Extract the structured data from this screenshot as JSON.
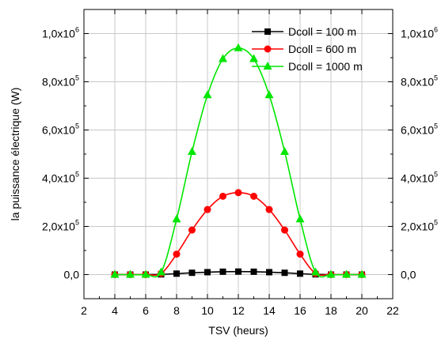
{
  "chart_data": {
    "type": "line",
    "xlabel": "TSV (heurs)",
    "ylabel": "la puissance électrique (W)",
    "xlim": [
      2,
      22
    ],
    "ylim": [
      -100000,
      1100000
    ],
    "x_ticks": [
      2,
      4,
      6,
      8,
      10,
      12,
      14,
      16,
      18,
      20,
      22
    ],
    "x_tick_labels": [
      "2",
      "4",
      "6",
      "8",
      "10",
      "12",
      "14",
      "16",
      "18",
      "20",
      "22"
    ],
    "y_ticks": [
      0,
      200000,
      400000,
      600000,
      800000,
      1000000
    ],
    "y_tick_labels": [
      {
        "base": "0,0",
        "exp": ""
      },
      {
        "base": "2,0x10",
        "exp": "5"
      },
      {
        "base": "4,0x10",
        "exp": "5"
      },
      {
        "base": "6,0x10",
        "exp": "5"
      },
      {
        "base": "8,0x10",
        "exp": "5"
      },
      {
        "base": "1,0x10",
        "exp": "6"
      }
    ],
    "right_axis_labels": true,
    "grid": true,
    "legend_position": "top-right",
    "x": [
      4,
      5,
      6,
      7,
      8,
      9,
      10,
      11,
      12,
      13,
      14,
      15,
      16,
      17,
      18,
      19,
      20
    ],
    "series": [
      {
        "name": "Dcoll = 100 m",
        "color": "#000000",
        "marker": "square",
        "values": [
          0,
          0,
          0,
          1000,
          4000,
          7500,
          10000,
          12000,
          12500,
          12000,
          10000,
          7500,
          4000,
          1000,
          0,
          0,
          0
        ]
      },
      {
        "name": "Dcoll = 600 m",
        "color": "#ff0000",
        "marker": "circle",
        "values": [
          0,
          0,
          0,
          5000,
          85000,
          185000,
          270000,
          325000,
          340000,
          325000,
          270000,
          185000,
          85000,
          5000,
          0,
          0,
          0
        ]
      },
      {
        "name": "Dcoll = 1000 m",
        "color": "#00e600",
        "marker": "triangle",
        "values": [
          0,
          0,
          0,
          10000,
          230000,
          510000,
          745000,
          895000,
          940000,
          895000,
          745000,
          510000,
          230000,
          10000,
          0,
          0,
          0
        ]
      }
    ]
  }
}
